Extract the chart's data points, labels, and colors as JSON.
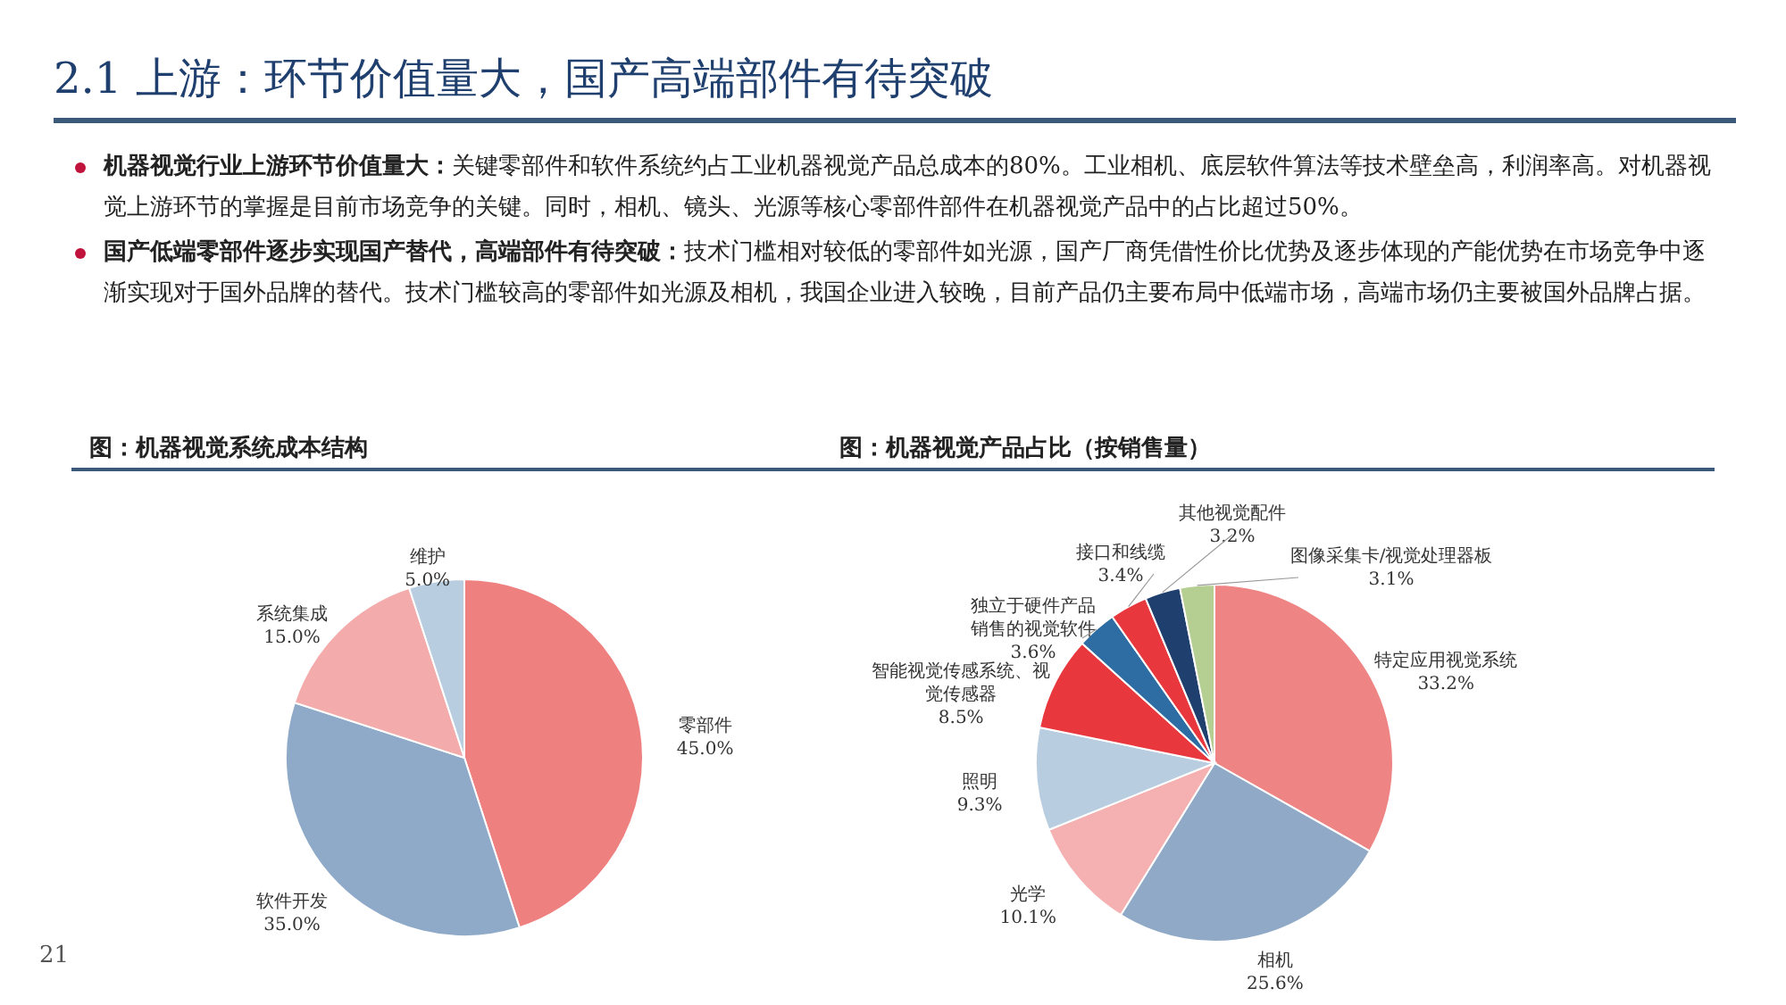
{
  "chart_data": [
    {
      "type": "pie",
      "title": "图：机器视觉系统成本结构",
      "annotations": [
        "2.1 上游：环节价值量大，国产高端部件有待突破",
        "机器视觉行业上游环节价值量大：关键零部件和软件系统约占工业机器视觉产品总成本的80%。工业相机、底层软件算法等技术壁垒高，利润率高。对机器视觉上游环节的掌握是目前市场竞争的关键。同时，相机、镜头、光源等核心零部件部件在机器视觉产品中的占比超过50%。",
        "国产低端零部件逐步实现国产替代，高端部件有待突破：技术门槛相对较低的零部件如光源，国产厂商凭借性价比优势及逐步体现的产能优势在市场竞争中逐渐实现对于国外品牌的替代。技术门槛较高的零部件如光源及相机，我国企业进入较晚，目前产品仍主要布局中低端市场，高端市场仍主要被国外品牌占据。",
        "21"
      ],
      "categories": [
        "零部件",
        "软件开发",
        "系统集成",
        "维护"
      ],
      "values": [
        45.0,
        35.0,
        15.0,
        5.0
      ],
      "colors": [
        "#ef8080",
        "#8eaac8",
        "#f4abab",
        "#b8cde0"
      ],
      "value_labels": [
        "45.0%",
        "35.0%",
        "15.0%",
        "5.0%"
      ]
    },
    {
      "type": "pie",
      "title": "图：机器视觉产品占比（按销售量）",
      "categories": [
        "特定应用视觉系统",
        "相机",
        "光学",
        "照明",
        "智能视觉传感系统、视觉传感器",
        "独立于硬件产品销售的视觉软件",
        "接口和线缆",
        "其他视觉配件",
        "图像采集卡/视觉处理器板"
      ],
      "values": [
        33.2,
        25.6,
        10.1,
        9.3,
        8.5,
        3.6,
        3.4,
        3.2,
        3.1
      ],
      "colors": [
        "#ef8484",
        "#8fa9c6",
        "#f5b1b1",
        "#b9cde0",
        "#e8383d",
        "#2e6da4",
        "#e8383d",
        "#1f3f6e",
        "#b5cf92"
      ],
      "value_labels": [
        "33.2%",
        "25.6%",
        "10.1%",
        "9.3%",
        "8.5%",
        "3.6%",
        "3.4%",
        "3.2%",
        "3.1%"
      ]
    }
  ]
}
